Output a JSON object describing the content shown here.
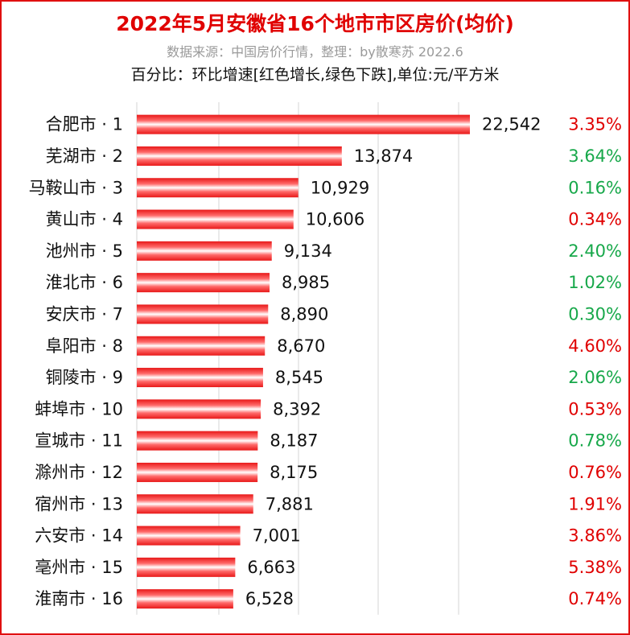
{
  "header": {
    "title": "2022年5月安徽省16个地市市区房价(均价)",
    "source": "数据来源：中国房价行情，整理：by散寒苏 2022.6",
    "note": "百分比：环比增速[红色增长,绿色下跌],单位:元/平方米"
  },
  "colors": {
    "bar": "#e81818",
    "bar_highlight": "#ffffff",
    "up": "#e00000",
    "down": "#17a84a",
    "border": "#e01010"
  },
  "chart_data": {
    "type": "bar",
    "orientation": "horizontal",
    "categories": [
      "合肥市 · 1",
      "芜湖市 · 2",
      "马鞍山市 · 3",
      "黄山市 · 4",
      "池州市 · 5",
      "淮北市 · 6",
      "安庆市 · 7",
      "阜阳市 · 8",
      "铜陵市 · 9",
      "蚌埠市 · 10",
      "宣城市 · 11",
      "滁州市 · 12",
      "宿州市 · 13",
      "六安市 · 14",
      "亳州市 · 15",
      "淮南市 · 16"
    ],
    "values": [
      22542,
      13874,
      10929,
      10606,
      9134,
      8985,
      8890,
      8670,
      8545,
      8392,
      8187,
      8175,
      7881,
      7001,
      6663,
      6528
    ],
    "value_labels": [
      "22,542",
      "13,874",
      "10,929",
      "10,606",
      "9,134",
      "8,985",
      "8,890",
      "8,670",
      "8,545",
      "8,392",
      "8,187",
      "8,175",
      "7,881",
      "7,001",
      "6,663",
      "6,528"
    ],
    "mom_growth": [
      "3.35%",
      "3.64%",
      "0.16%",
      "0.34%",
      "2.40%",
      "1.02%",
      "0.30%",
      "4.60%",
      "2.06%",
      "0.53%",
      "0.78%",
      "0.76%",
      "1.91%",
      "3.86%",
      "5.38%",
      "0.74%"
    ],
    "mom_direction": [
      "up",
      "down",
      "down",
      "up",
      "down",
      "down",
      "down",
      "up",
      "down",
      "up",
      "down",
      "up",
      "up",
      "up",
      "up",
      "up"
    ],
    "xlim": [
      0,
      22542
    ],
    "grid": true,
    "legend": "none"
  }
}
